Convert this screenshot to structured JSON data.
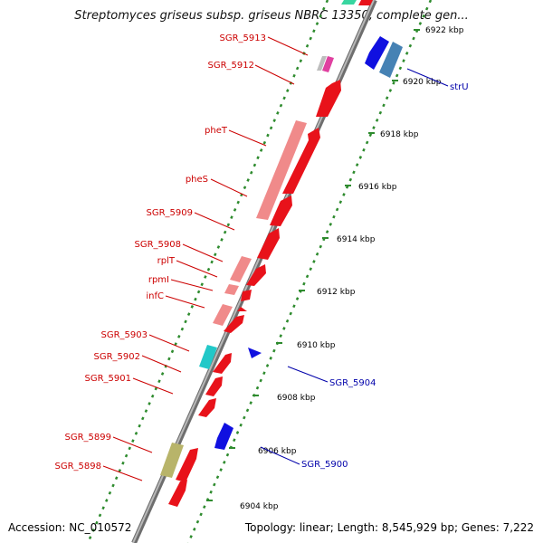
{
  "title": "Streptomyces griseus subsp. griseus NBRC 13350, complete gen...",
  "footer": {
    "accession": "Accession: NC_010572",
    "topology": "Topology: linear; Length: 8,545,929 bp; Genes: 7,222"
  },
  "colors": {
    "backbone": "#8c8c8c",
    "tick_dots": "#2e8b2e",
    "label_left": "#cc0000",
    "label_right": "#0000aa"
  },
  "ticks": [
    "6922 kbp",
    "6920 kbp",
    "6918 kbp",
    "6916 kbp",
    "6914 kbp",
    "6912 kbp",
    "6910 kbp",
    "6908 kbp",
    "6906 kbp",
    "6904 kbp"
  ],
  "left_labels": [
    "SGR_5913",
    "SGR_5912",
    "pheT",
    "pheS",
    "SGR_5909",
    "SGR_5908",
    "rplT",
    "rpmI",
    "infC",
    "SGR_5903",
    "SGR_5902",
    "SGR_5901",
    "SGR_5899",
    "SGR_5898"
  ],
  "right_labels": [
    "strU",
    "SGR_5904",
    "SGR_5900"
  ],
  "genes": [
    {
      "name": "SGR_5913",
      "color": "#e040a0",
      "strand": "+",
      "lane": "outer"
    },
    {
      "name": "SGR_5912",
      "color": "#e8121a",
      "strand": "+",
      "lane": "inner"
    },
    {
      "name": "pheT",
      "color": "#f08a8a",
      "strand": "+",
      "lane": "outer"
    },
    {
      "name": "pheS",
      "color": "#e8121a",
      "strand": "+",
      "lane": "inner"
    },
    {
      "name": "rplT",
      "color": "#f08a8a",
      "strand": "+",
      "lane": "outer"
    },
    {
      "name": "rpmI",
      "color": "#f08a8a",
      "strand": "+",
      "lane": "outer"
    },
    {
      "name": "infC",
      "color": "#f08a8a",
      "strand": "+",
      "lane": "outer"
    },
    {
      "name": "SGR_5903",
      "color": "#22c8c8",
      "strand": "+",
      "lane": "outer"
    },
    {
      "name": "SGR_5902",
      "color": "#e8121a",
      "strand": "+",
      "lane": "inner"
    },
    {
      "name": "SGR_5899",
      "color": "#b8b46a",
      "strand": "+",
      "lane": "outer"
    },
    {
      "name": "strU",
      "color": "#4682b4",
      "strand": "-",
      "lane": "outer"
    },
    {
      "name": "SGR_5904",
      "color": "#1010e0",
      "strand": "-",
      "lane": "inner"
    },
    {
      "name": "SGR_5900",
      "color": "#1010e0",
      "strand": "-",
      "lane": "inner"
    }
  ]
}
